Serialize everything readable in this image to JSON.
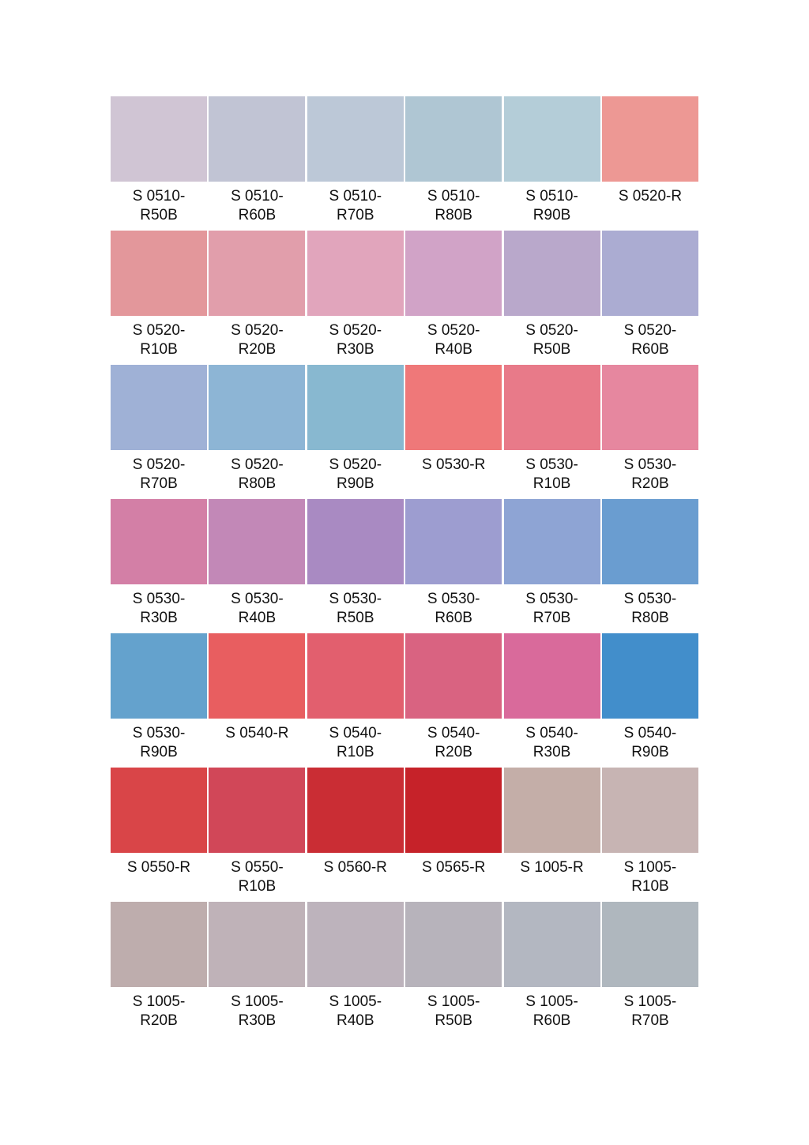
{
  "swatches": [
    {
      "code": "S 0510-\nR50B",
      "color": "#d0c5d4"
    },
    {
      "code": "S 0510-\nR60B",
      "color": "#c1c4d4"
    },
    {
      "code": "S 0510-\nR70B",
      "color": "#bcc8d7"
    },
    {
      "code": "S 0510-\nR80B",
      "color": "#afc6d3"
    },
    {
      "code": "S 0510-\nR90B",
      "color": "#b4cdd8"
    },
    {
      "code": "S 0520-R",
      "color": "#ed9894"
    },
    {
      "code": "S 0520-\nR10B",
      "color": "#e3979b"
    },
    {
      "code": "S 0520-\nR20B",
      "color": "#e19eab"
    },
    {
      "code": "S 0520-\nR30B",
      "color": "#e1a5bc"
    },
    {
      "code": "S 0520-\nR40B",
      "color": "#d1a3c7"
    },
    {
      "code": "S 0520-\nR50B",
      "color": "#b9a8cb"
    },
    {
      "code": "S 0520-\nR60B",
      "color": "#abacd2"
    },
    {
      "code": "S 0520-\nR70B",
      "color": "#9fb1d6"
    },
    {
      "code": "S 0520-\nR80B",
      "color": "#8db5d5"
    },
    {
      "code": "S 0520-\nR90B",
      "color": "#88b8d0"
    },
    {
      "code": "S 0530-R",
      "color": "#ef7879"
    },
    {
      "code": "S 0530-\nR10B",
      "color": "#e87a89"
    },
    {
      "code": "S 0530-\nR20B",
      "color": "#e6879f"
    },
    {
      "code": "S 0530-\nR30B",
      "color": "#d37fa6"
    },
    {
      "code": "S 0530-\nR40B",
      "color": "#c288b7"
    },
    {
      "code": "S 0530-\nR50B",
      "color": "#a98ac2"
    },
    {
      "code": "S 0530-\nR60B",
      "color": "#9d9dd0"
    },
    {
      "code": "S 0530-\nR70B",
      "color": "#8ea4d4"
    },
    {
      "code": "S 0530-\nR80B",
      "color": "#6a9dd0"
    },
    {
      "code": "S 0530-\nR90B",
      "color": "#64a2cd"
    },
    {
      "code": "S 0540-R",
      "color": "#e85e60"
    },
    {
      "code": "S 0540-\nR10B",
      "color": "#e25f6e"
    },
    {
      "code": "S 0540-\nR20B",
      "color": "#d96381"
    },
    {
      "code": "S 0540-\nR30B",
      "color": "#d96a9b"
    },
    {
      "code": "S 0540-\nR90B",
      "color": "#428ecb"
    },
    {
      "code": "S 0550-R",
      "color": "#d94548"
    },
    {
      "code": "S 0550-\nR10B",
      "color": "#d14758"
    },
    {
      "code": "S 0560-R",
      "color": "#ca2d34"
    },
    {
      "code": "S 0565-R",
      "color": "#c62229"
    },
    {
      "code": "S 1005-R",
      "color": "#c4aea8"
    },
    {
      "code": "S 1005-\nR10B",
      "color": "#c7b4b3"
    },
    {
      "code": "S 1005-\nR20B",
      "color": "#beadad"
    },
    {
      "code": "S 1005-\nR30B",
      "color": "#bfb2b8"
    },
    {
      "code": "S 1005-\nR40B",
      "color": "#bdb3bc"
    },
    {
      "code": "S 1005-\nR50B",
      "color": "#b7b3bb"
    },
    {
      "code": "S 1005-\nR60B",
      "color": "#b3b7c1"
    },
    {
      "code": "S 1005-\nR70B",
      "color": "#afb7be"
    }
  ]
}
